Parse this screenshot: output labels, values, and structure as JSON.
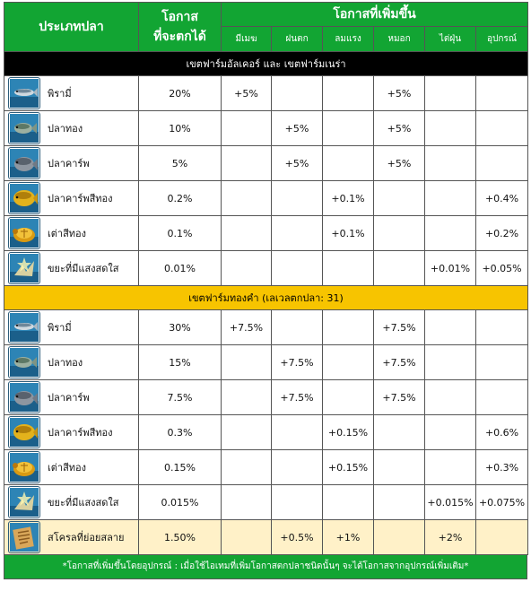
{
  "header": {
    "fish_type": "ประเภทปลา",
    "catch_chance_line1": "โอกาส",
    "catch_chance_line2": "ที่จะตกได้",
    "bonus": "โอกาสที่เพิ่มขึ้น",
    "conditions": [
      "มีเมฆ",
      "ฝนตก",
      "ลมแรง",
      "หมอก",
      "ไต่ฝุ่น",
      "อุปกรณ์"
    ]
  },
  "sections": [
    {
      "title": "เขตฟาร์มอัลเคอร์ และ เขตฟาร์มเนร่า",
      "style": "black",
      "rows": [
        {
          "icon": "sardine-fish-icon",
          "name": "พิรามี่",
          "chance": "20%",
          "bonus": [
            "+5%",
            "",
            "",
            "+5%",
            "",
            ""
          ]
        },
        {
          "icon": "goldfish-icon",
          "name": "ปลาทอง",
          "chance": "10%",
          "bonus": [
            "",
            "+5%",
            "",
            "+5%",
            "",
            ""
          ]
        },
        {
          "icon": "carp-icon",
          "name": "ปลาคาร์พ",
          "chance": "5%",
          "bonus": [
            "",
            "+5%",
            "",
            "+5%",
            "",
            ""
          ]
        },
        {
          "icon": "golden-carp-icon",
          "name": "ปลาคาร์พสีทอง",
          "chance": "0.2%",
          "bonus": [
            "",
            "",
            "+0.1%",
            "",
            "",
            "+0.4%"
          ]
        },
        {
          "icon": "golden-turtle-icon",
          "name": "เต่าสีทอง",
          "chance": "0.1%",
          "bonus": [
            "",
            "",
            "+0.1%",
            "",
            "",
            "+0.2%"
          ]
        },
        {
          "icon": "shiny-junk-icon",
          "name": "ขยะที่มีแสงสดใส",
          "chance": "0.01%",
          "bonus": [
            "",
            "",
            "",
            "",
            "+0.01%",
            "+0.05%"
          ]
        }
      ]
    },
    {
      "title": "เขตฟาร์มทองคำ (เลเวลตกปลา: 31)",
      "style": "yellow",
      "rows": [
        {
          "icon": "sardine-fish-icon",
          "name": "พิรามี่",
          "chance": "30%",
          "bonus": [
            "+7.5%",
            "",
            "",
            "+7.5%",
            "",
            ""
          ]
        },
        {
          "icon": "goldfish-icon",
          "name": "ปลาทอง",
          "chance": "15%",
          "bonus": [
            "",
            "+7.5%",
            "",
            "+7.5%",
            "",
            ""
          ]
        },
        {
          "icon": "carp-icon",
          "name": "ปลาคาร์พ",
          "chance": "7.5%",
          "bonus": [
            "",
            "+7.5%",
            "",
            "+7.5%",
            "",
            ""
          ]
        },
        {
          "icon": "golden-carp-icon",
          "name": "ปลาคาร์พสีทอง",
          "chance": "0.3%",
          "bonus": [
            "",
            "",
            "+0.15%",
            "",
            "",
            "+0.6%"
          ]
        },
        {
          "icon": "golden-turtle-icon",
          "name": "เต่าสีทอง",
          "chance": "0.15%",
          "bonus": [
            "",
            "",
            "+0.15%",
            "",
            "",
            "+0.3%"
          ]
        },
        {
          "icon": "shiny-junk-icon",
          "name": "ขยะที่มีแสงสดใส",
          "chance": "0.015%",
          "bonus": [
            "",
            "",
            "",
            "",
            "+0.015%",
            "+0.075%"
          ]
        },
        {
          "icon": "decayed-skeleton-icon",
          "name": "สโครลที่ย่อยสลาย",
          "chance": "1.50%",
          "bonus": [
            "",
            "+0.5%",
            "+1%",
            "",
            "+2%",
            ""
          ],
          "cream": true
        }
      ]
    }
  ],
  "footer": "*โอกาสที่เพิ่มขึ้นโดยอุปกรณ์ : เมื่อใช้ไอเทมที่เพิ่มโอกาสตกปลาชนิดนั้นๆ จะได้โอกาสจากอุปกรณ์เพิ่มเติม*",
  "colors": {
    "header_green": "#12a533",
    "section_black": "#000000",
    "section_yellow": "#f7c400",
    "cream_row": "#fff1c8"
  }
}
